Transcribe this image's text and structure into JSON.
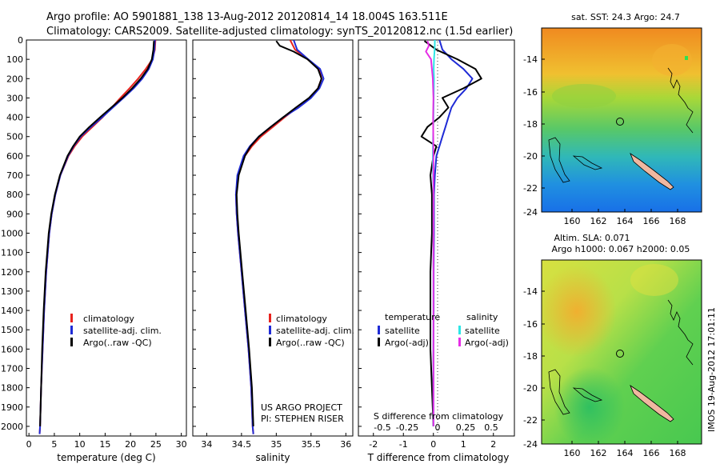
{
  "header": {
    "line1": "Argo profile: AO 5901881_138 13-Aug-2012 20120814_14 18.004S 163.511E",
    "line2": "Climatology: CARS2009. Satellite-adjusted climatology: synTS_20120812.nc (1.5d earlier)"
  },
  "colors": {
    "climatology": "#e8231e",
    "satellite": "#1f2bd6",
    "argo": "#000000",
    "cyan": "#2ee6e6",
    "magenta": "#e62ee6",
    "land": "#f0b8a0"
  },
  "chart_data": [
    {
      "type": "line",
      "panel": "temperature",
      "xlabel": "temperature (deg C)",
      "ylim": [
        0,
        2050
      ],
      "xlim": [
        -0.5,
        31
      ],
      "xticks": [
        0,
        5,
        10,
        15,
        20,
        25,
        30
      ],
      "yticks": [
        0,
        100,
        200,
        300,
        400,
        500,
        600,
        700,
        800,
        900,
        1000,
        1100,
        1200,
        1300,
        1400,
        1500,
        1600,
        1700,
        1800,
        1900,
        2000
      ],
      "legend": [
        "climatology",
        "satellite-adj. clim.",
        "Argo(..raw -QC)"
      ],
      "series": [
        {
          "name": "climatology",
          "color": "#e8231e",
          "depth": [
            0,
            50,
            100,
            150,
            200,
            250,
            300,
            350,
            400,
            450,
            500,
            550,
            600,
            700,
            800,
            900,
            1000,
            1200,
            1400,
            1600,
            1800,
            2000,
            2040
          ],
          "values": [
            24.9,
            24.8,
            24.3,
            23.0,
            21.5,
            19.8,
            18.0,
            16.3,
            14.5,
            12.5,
            10.5,
            9.0,
            7.8,
            6.2,
            5.2,
            4.5,
            4.0,
            3.4,
            3.0,
            2.7,
            2.4,
            2.2,
            2.1
          ]
        },
        {
          "name": "satellite-adj. clim.",
          "color": "#1f2bd6",
          "depth": [
            0,
            50,
            100,
            150,
            200,
            250,
            300,
            350,
            400,
            450,
            500,
            550,
            600,
            700,
            800,
            900,
            1000,
            1200,
            1400,
            1600,
            1800,
            2000,
            2040
          ],
          "values": [
            24.8,
            24.7,
            24.4,
            23.6,
            22.3,
            20.6,
            18.6,
            16.5,
            14.4,
            12.2,
            10.2,
            8.8,
            7.7,
            6.2,
            5.2,
            4.5,
            4.0,
            3.4,
            3.0,
            2.7,
            2.4,
            2.2,
            2.1
          ]
        },
        {
          "name": "Argo(..raw -QC)",
          "color": "#000000",
          "depth": [
            5,
            50,
            100,
            150,
            200,
            250,
            300,
            350,
            400,
            450,
            500,
            550,
            600,
            700,
            800,
            900,
            1000,
            1200,
            1400,
            1600,
            1800,
            2000
          ],
          "values": [
            24.6,
            24.5,
            24.2,
            23.4,
            22.0,
            20.3,
            18.4,
            16.2,
            14.0,
            11.9,
            10.0,
            8.7,
            7.6,
            6.1,
            5.1,
            4.4,
            3.9,
            3.3,
            2.9,
            2.6,
            2.4,
            2.2
          ]
        }
      ]
    },
    {
      "type": "line",
      "panel": "salinity",
      "xlabel": "salinity",
      "ylim": [
        0,
        2050
      ],
      "xlim": [
        33.8,
        36.1
      ],
      "xticks": [
        34,
        34.5,
        35,
        35.5,
        36
      ],
      "legend": [
        "climatology",
        "satellite-adj. clim.",
        "Argo(..raw -QC)"
      ],
      "annotation": [
        "US ARGO PROJECT",
        "PI: STEPHEN RISER"
      ],
      "series": [
        {
          "name": "climatology",
          "color": "#e8231e",
          "depth": [
            0,
            50,
            100,
            150,
            200,
            250,
            300,
            350,
            400,
            450,
            500,
            550,
            600,
            700,
            800,
            900,
            1000,
            1200,
            1400,
            1600,
            1800,
            2000,
            2040
          ],
          "values": [
            35.2,
            35.27,
            35.45,
            35.62,
            35.65,
            35.6,
            35.48,
            35.3,
            35.12,
            34.95,
            34.78,
            34.65,
            34.55,
            34.45,
            34.42,
            34.43,
            34.45,
            34.5,
            34.55,
            34.6,
            34.64,
            34.66,
            34.67
          ]
        },
        {
          "name": "satellite-adj. clim.",
          "color": "#1f2bd6",
          "depth": [
            0,
            50,
            100,
            150,
            200,
            250,
            300,
            350,
            400,
            450,
            500,
            550,
            600,
            700,
            800,
            900,
            1000,
            1200,
            1400,
            1600,
            1800,
            2000,
            2040
          ],
          "values": [
            35.25,
            35.3,
            35.46,
            35.63,
            35.68,
            35.62,
            35.5,
            35.32,
            35.1,
            34.92,
            34.75,
            34.62,
            34.53,
            34.44,
            34.42,
            34.43,
            34.45,
            34.5,
            34.55,
            34.6,
            34.64,
            34.66,
            34.67
          ]
        },
        {
          "name": "Argo(..raw -QC)",
          "color": "#000000",
          "depth": [
            5,
            30,
            60,
            100,
            150,
            200,
            250,
            300,
            350,
            400,
            450,
            500,
            550,
            600,
            700,
            800,
            900,
            1000,
            1200,
            1400,
            1600,
            1800,
            2000
          ],
          "values": [
            35.0,
            35.05,
            35.25,
            35.45,
            35.6,
            35.65,
            35.6,
            35.47,
            35.28,
            35.1,
            34.92,
            34.75,
            34.63,
            34.55,
            34.46,
            34.43,
            34.44,
            34.46,
            34.51,
            34.56,
            34.61,
            34.65,
            34.67
          ]
        }
      ]
    },
    {
      "type": "line",
      "panel": "difference",
      "xlabel": "T difference from climatology",
      "xlabel2": "S difference from climatology",
      "ylim": [
        0,
        2050
      ],
      "xlim": [
        -2.5,
        2.7
      ],
      "xticks": [
        -2,
        -1,
        0,
        1,
        2
      ],
      "sticks": [
        "-0.5",
        "-0.25",
        "0",
        "0.25",
        "0.5"
      ],
      "legend_temperature": {
        "title": "temperature",
        "entries": [
          "satellite",
          "Argo(-adj)"
        ]
      },
      "legend_salinity": {
        "title": "salinity",
        "entries": [
          "satellite",
          "Argo(-adj)"
        ]
      },
      "series": [
        {
          "name": "satellite",
          "group": "temperature",
          "color": "#1f2bd6",
          "depth": [
            0,
            50,
            100,
            150,
            200,
            250,
            300,
            350,
            400,
            450,
            500,
            550,
            600,
            700,
            800,
            900,
            1000,
            1200,
            1400,
            1600,
            1800,
            2000
          ],
          "values": [
            0.2,
            0.3,
            0.6,
            1.0,
            1.3,
            1.1,
            0.8,
            0.6,
            0.5,
            0.4,
            0.3,
            0.2,
            0.1,
            0.05,
            0.02,
            0.02,
            0.02,
            0.01,
            0.01,
            0.0,
            0.0,
            0.0
          ]
        },
        {
          "name": "Argo(-adj)",
          "group": "temperature",
          "color": "#000000",
          "depth": [
            5,
            50,
            100,
            150,
            200,
            250,
            300,
            350,
            400,
            450,
            500,
            550,
            600,
            700,
            800,
            900,
            1000,
            1200,
            1400,
            1600,
            1800,
            2000
          ],
          "values": [
            -0.3,
            0.1,
            0.8,
            1.4,
            1.6,
            1.0,
            0.3,
            0.5,
            0.2,
            -0.2,
            -0.4,
            0.1,
            0.0,
            -0.1,
            -0.05,
            -0.05,
            -0.05,
            -0.1,
            -0.1,
            -0.1,
            -0.05,
            0.0
          ]
        },
        {
          "name": "satellite",
          "group": "salinity",
          "color": "#2ee6e6",
          "depth": [
            0,
            50,
            100,
            150,
            200,
            300,
            400,
            500,
            600,
            700,
            800,
            1000,
            1200,
            1400,
            1600,
            1800,
            2000
          ],
          "values": [
            0.05,
            0.04,
            0.02,
            0.01,
            0.02,
            0.01,
            0.0,
            -0.01,
            -0.02,
            -0.01,
            0.0,
            0.0,
            0.0,
            0.0,
            0.0,
            0.0,
            0.0
          ]
        },
        {
          "name": "Argo(-adj)",
          "group": "salinity",
          "color": "#e62ee6",
          "depth": [
            5,
            30,
            60,
            100,
            150,
            200,
            250,
            300,
            400,
            500,
            600,
            800,
            1000,
            1200,
            1400,
            1600,
            1800,
            2000
          ],
          "values": [
            -0.2,
            -0.15,
            -0.25,
            -0.08,
            -0.05,
            -0.02,
            -0.01,
            0.0,
            -0.01,
            -0.005,
            0.0,
            0.0,
            0.0,
            0.0,
            0.0,
            0.0,
            0.0,
            0.0
          ]
        }
      ]
    },
    {
      "type": "heatmap",
      "panel": "sst-map",
      "title": "sat. SST: 24.3 Argo: 24.7",
      "xticks": [
        "160",
        "162",
        "164",
        "166",
        "168"
      ],
      "yticks": [
        "-14",
        "-16",
        "-18",
        "-20",
        "-22",
        "-24"
      ]
    },
    {
      "type": "heatmap",
      "panel": "sla-map",
      "title_line1": "Altim. SLA: 0.071",
      "title_line2": "Argo h1000: 0.067 h2000: 0.05",
      "xticks": [
        "160",
        "162",
        "164",
        "166",
        "168"
      ],
      "yticks": [
        "-14",
        "-16",
        "-18",
        "-20",
        "-22",
        "-24"
      ]
    }
  ],
  "footer": {
    "stamp": "IMOS 19-Aug-2012 17:01:11"
  }
}
